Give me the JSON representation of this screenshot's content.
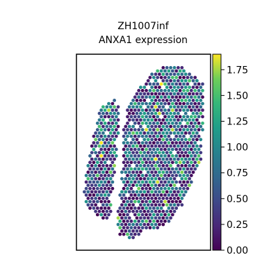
{
  "chart_data": {
    "type": "scatter",
    "subtype": "spatial-hexagon-spot-map",
    "title": "ZH1007inf",
    "subtitle": "ANXA1 expression",
    "xlabel": "",
    "ylabel": "",
    "colormap": "viridis",
    "color_range": [
      0.0,
      1.9
    ],
    "colorbar": {
      "ticks": [
        0.0,
        0.25,
        0.5,
        0.75,
        1.0,
        1.25,
        1.5,
        1.75
      ],
      "tick_labels": [
        "0.00",
        "0.25",
        "0.50",
        "0.75",
        "1.00",
        "1.25",
        "1.50",
        "1.75"
      ],
      "position": "right"
    },
    "grid": false,
    "axes_visible": false,
    "note_values": "ANXA1 expression per spot, mostly 0.0-1.0 with sparse high values up to ~1.9"
  },
  "colors": {
    "viridis_low": "#440154",
    "viridis_mid": "#21918c",
    "viridis_high": "#fde725",
    "frame": "#000000"
  }
}
